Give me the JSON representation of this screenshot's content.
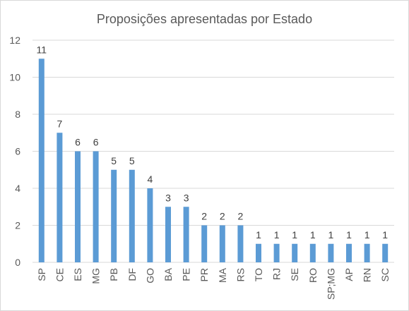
{
  "chart_data": {
    "type": "bar",
    "title": "Proposições apresentadas por Estado",
    "categories": [
      "SP",
      "CE",
      "ES",
      "MG",
      "PB",
      "DF",
      "GO",
      "BA",
      "PE",
      "PR",
      "MA",
      "RS",
      "TO",
      "RJ",
      "SE",
      "RO",
      "SP;MG",
      "AP",
      "RN",
      "SC"
    ],
    "values": [
      11,
      7,
      6,
      6,
      5,
      5,
      4,
      3,
      3,
      2,
      2,
      2,
      1,
      1,
      1,
      1,
      1,
      1,
      1,
      1
    ],
    "ylim": [
      0,
      12
    ],
    "yticks": [
      0,
      2,
      4,
      6,
      8,
      10,
      12
    ],
    "grid": true,
    "data_labels": true,
    "colors": {
      "bar": "#5b9bd5",
      "grid": "#d9d9d9",
      "text": "#404040",
      "tick": "#595959"
    }
  }
}
